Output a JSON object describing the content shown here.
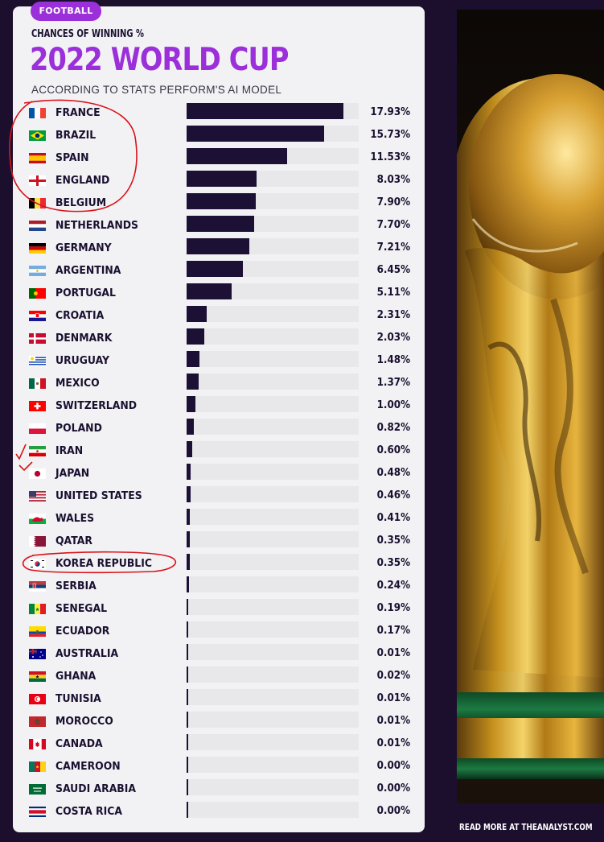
{
  "badge": "FOOTBALL",
  "subtitle": "CHANCES OF WINNING %",
  "title": "2022 WORLD CUP",
  "source": "ACCORDING TO STATS PERFORM'S AI MODEL",
  "footer": "READ MORE AT THEANALYST.COM",
  "colors": {
    "accent": "#9b2fd9",
    "bar": "#1d1035",
    "background": "#1c0f2e",
    "card": "#f2f2f4",
    "annotation": "#d9141b"
  },
  "annotations": [
    "red-circle-top-five",
    "red-checkmarks-iran-japan",
    "red-circle-korea-republic"
  ],
  "chart_data": {
    "type": "bar",
    "orientation": "horizontal",
    "xlim": [
      0,
      17.93
    ],
    "grid": false,
    "categories": [
      "FRANCE",
      "BRAZIL",
      "SPAIN",
      "ENGLAND",
      "BELGIUM",
      "NETHERLANDS",
      "GERMANY",
      "ARGENTINA",
      "PORTUGAL",
      "CROATIA",
      "DENMARK",
      "URUGUAY",
      "MEXICO",
      "SWITZERLAND",
      "POLAND",
      "IRAN",
      "JAPAN",
      "UNITED STATES",
      "WALES",
      "QATAR",
      "KOREA REPUBLIC",
      "SERBIA",
      "SENEGAL",
      "ECUADOR",
      "AUSTRALIA",
      "GHANA",
      "TUNISIA",
      "MOROCCO",
      "CANADA",
      "CAMEROON",
      "SAUDI ARABIA",
      "COSTA RICA"
    ],
    "values": [
      17.93,
      15.73,
      11.53,
      8.03,
      7.9,
      7.7,
      7.21,
      6.45,
      5.11,
      2.31,
      2.03,
      1.48,
      1.37,
      1.0,
      0.82,
      0.6,
      0.48,
      0.46,
      0.41,
      0.35,
      0.35,
      0.24,
      0.19,
      0.17,
      0.01,
      0.02,
      0.01,
      0.01,
      0.01,
      0.0,
      0.0,
      0.0
    ],
    "labels": [
      "17.93%",
      "15.73%",
      "11.53%",
      "8.03%",
      "7.90%",
      "7.70%",
      "7.21%",
      "6.45%",
      "5.11%",
      "2.31%",
      "2.03%",
      "1.48%",
      "1.37%",
      "1.00%",
      "0.82%",
      "0.60%",
      "0.48%",
      "0.46%",
      "0.41%",
      "0.35%",
      "0.35%",
      "0.24%",
      "0.19%",
      "0.17%",
      "0.01%",
      "0.02%",
      "0.01%",
      "0.01%",
      "0.01%",
      "0.00%",
      "0.00%",
      "0.00%"
    ],
    "flags": [
      "france",
      "brazil",
      "spain",
      "england",
      "belgium",
      "netherlands",
      "germany",
      "argentina",
      "portugal",
      "croatia",
      "denmark",
      "uruguay",
      "mexico",
      "switzerland",
      "poland",
      "iran",
      "japan",
      "united-states",
      "wales",
      "qatar",
      "korea-republic",
      "serbia",
      "senegal",
      "ecuador",
      "australia",
      "ghana",
      "tunisia",
      "morocco",
      "canada",
      "cameroon",
      "saudi-arabia",
      "costa-rica"
    ]
  }
}
